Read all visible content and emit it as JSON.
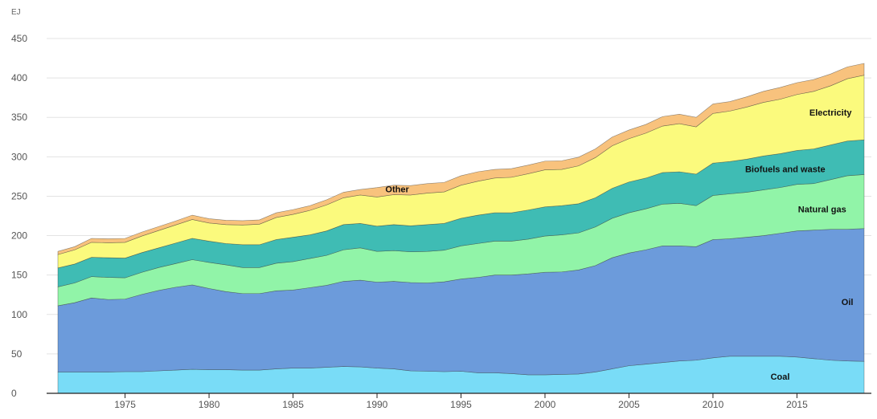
{
  "chart_data": {
    "type": "area",
    "stacked": true,
    "unit_label": "EJ",
    "title": "",
    "xlabel": "",
    "ylabel": "EJ",
    "xlim": [
      1971,
      2019
    ],
    "ylim": [
      0,
      450
    ],
    "y_ticks": [
      0,
      50,
      100,
      150,
      200,
      250,
      300,
      350,
      400,
      450
    ],
    "x_ticks": [
      1975,
      1980,
      1985,
      1990,
      1995,
      2000,
      2005,
      2010,
      2015
    ],
    "grid": "horizontal",
    "legend": "inline labels",
    "x": [
      1971,
      1972,
      1973,
      1974,
      1975,
      1976,
      1977,
      1978,
      1979,
      1980,
      1981,
      1982,
      1983,
      1984,
      1985,
      1986,
      1987,
      1988,
      1989,
      1990,
      1991,
      1992,
      1993,
      1994,
      1995,
      1996,
      1997,
      1998,
      1999,
      2000,
      2001,
      2002,
      2003,
      2004,
      2005,
      2006,
      2007,
      2008,
      2009,
      2010,
      2011,
      2012,
      2013,
      2014,
      2015,
      2016,
      2017,
      2018,
      2019
    ],
    "series": [
      {
        "name": "Coal",
        "color": "#79dcf7",
        "values": [
          27,
          27,
          27,
          27,
          27.5,
          27.5,
          28.5,
          29.5,
          30.5,
          30,
          30,
          29.5,
          29.5,
          31,
          32,
          32,
          33,
          34,
          33.5,
          32,
          31,
          28.5,
          28,
          27.5,
          28,
          26,
          26,
          25,
          23.5,
          23.5,
          24,
          24.5,
          27,
          31,
          35,
          37,
          39,
          41,
          42,
          45,
          47,
          47,
          47,
          47,
          46,
          44,
          42,
          41,
          40.5
        ]
      },
      {
        "name": "Oil",
        "color": "#6c9bdb",
        "values": [
          84,
          88,
          94,
          92,
          92,
          98,
          102,
          105,
          107,
          103,
          99,
          97,
          97,
          99,
          99,
          102,
          104,
          108,
          110,
          109,
          111,
          112,
          112,
          114,
          117,
          121,
          124,
          125,
          128,
          130,
          130,
          132,
          135,
          141,
          143,
          145,
          148,
          146,
          144,
          150,
          149,
          151,
          153,
          156,
          160,
          163,
          166,
          167,
          168.5
        ]
      },
      {
        "name": "Natural gas",
        "color": "#91f4a8",
        "values": [
          24,
          25,
          27,
          28,
          27,
          28,
          29,
          30,
          32,
          33,
          34,
          33,
          33,
          35,
          36,
          37,
          38,
          40,
          41,
          39,
          39,
          39,
          40,
          40,
          42,
          43,
          43,
          43,
          44,
          46,
          47,
          47,
          49,
          50,
          51,
          52,
          53,
          54,
          52,
          56,
          57,
          57,
          58,
          58,
          59,
          59,
          63,
          68,
          68.5
        ]
      },
      {
        "name": "Biofuels and waste",
        "color": "#3fbcb4",
        "values": [
          24,
          24,
          24.5,
          25,
          25,
          25,
          25,
          26,
          27,
          27,
          27,
          29,
          29,
          30,
          31,
          30,
          31,
          32,
          31,
          32,
          33,
          33,
          34,
          34,
          35,
          36,
          36,
          36,
          37,
          37,
          37,
          37,
          37,
          38,
          39,
          39,
          40,
          40,
          40,
          41,
          41,
          42,
          43,
          43,
          43,
          44,
          44,
          44,
          44
        ]
      },
      {
        "name": "Electricity",
        "color": "#fbfa7d",
        "values": [
          17,
          18,
          19,
          19,
          20,
          21,
          22,
          23,
          24,
          23,
          24,
          25,
          26,
          28,
          29,
          31,
          33,
          34,
          36,
          37,
          38,
          39,
          40,
          40,
          42,
          43,
          44,
          45,
          46,
          47,
          46,
          48,
          51,
          54,
          55,
          57,
          59,
          61,
          60,
          63,
          64,
          66,
          68,
          69,
          71,
          73,
          75,
          79,
          82
        ]
      },
      {
        "name": "Other",
        "color": "#f8c27d",
        "values": [
          4,
          4,
          5,
          5,
          5,
          5,
          5,
          5,
          5.5,
          5.5,
          5.5,
          5.5,
          5.5,
          6,
          6,
          6,
          6.5,
          7,
          7,
          12,
          12,
          12,
          12,
          12,
          12,
          12,
          11,
          11,
          11,
          11,
          11,
          11,
          11,
          11,
          11,
          11,
          12,
          12,
          12,
          12,
          12,
          13,
          14,
          15,
          15,
          15,
          15,
          15,
          15
        ]
      }
    ]
  }
}
